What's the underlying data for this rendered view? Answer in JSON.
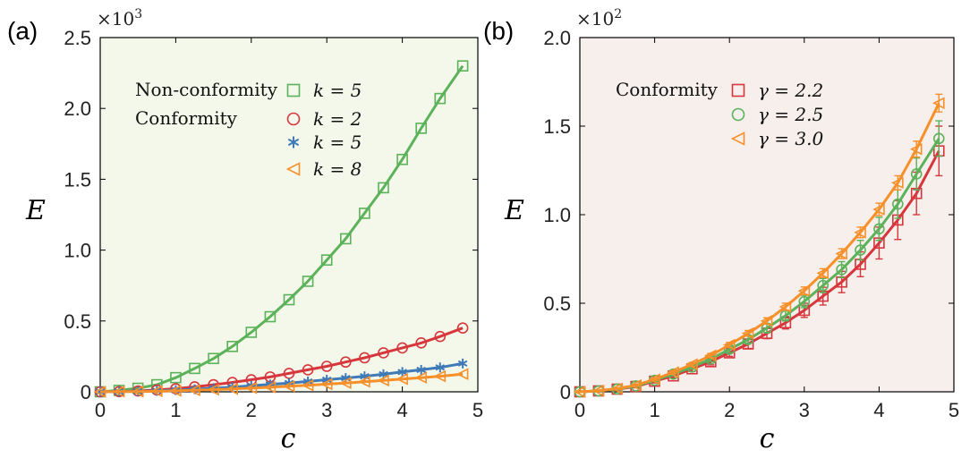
{
  "colors": {
    "green": "#5cb25a",
    "red": "#d6363c",
    "blue": "#3f7ab8",
    "orange": "#f7902a",
    "panel_a_bg": "#f3f8ea",
    "panel_b_bg": "#f6efec"
  },
  "chart_data": [
    {
      "type": "line",
      "panel_label": "(a)",
      "xlabel": "c",
      "ylabel": "E",
      "y_multiplier": "×10",
      "y_multiplier_exp": "3",
      "xlim": [
        0,
        5
      ],
      "ylim": [
        0,
        2.5
      ],
      "xticks": [
        "0",
        "1",
        "2",
        "3",
        "4",
        "5"
      ],
      "yticks": [
        "0",
        "0.5",
        "1.0",
        "1.5",
        "2.0",
        "2.5"
      ],
      "legend_heads": [
        "Non-conformity",
        "Conformity"
      ],
      "x": [
        0,
        0.25,
        0.5,
        0.75,
        1.0,
        1.25,
        1.5,
        1.75,
        2.0,
        2.25,
        2.5,
        2.75,
        3.0,
        3.25,
        3.5,
        3.75,
        4.0,
        4.25,
        4.5,
        4.8
      ],
      "series": [
        {
          "name": "k = 5",
          "group": "Non-conformity",
          "marker": "square",
          "color": "green",
          "values": [
            0,
            0.01,
            0.025,
            0.05,
            0.1,
            0.165,
            0.235,
            0.32,
            0.42,
            0.53,
            0.65,
            0.78,
            0.93,
            1.08,
            1.26,
            1.44,
            1.64,
            1.86,
            2.07,
            2.3
          ]
        },
        {
          "name": "k = 2",
          "group": "Conformity",
          "marker": "circle",
          "color": "red",
          "values": [
            0,
            0.001,
            0.006,
            0.013,
            0.022,
            0.035,
            0.05,
            0.066,
            0.085,
            0.105,
            0.13,
            0.155,
            0.18,
            0.21,
            0.24,
            0.275,
            0.31,
            0.345,
            0.39,
            0.45
          ]
        },
        {
          "name": "k = 5",
          "group": "Conformity",
          "marker": "asterisk",
          "color": "blue",
          "values": [
            0,
            0.001,
            0.003,
            0.007,
            0.012,
            0.018,
            0.025,
            0.033,
            0.042,
            0.052,
            0.062,
            0.073,
            0.085,
            0.097,
            0.11,
            0.124,
            0.14,
            0.155,
            0.172,
            0.2
          ]
        },
        {
          "name": "k = 8",
          "group": "Conformity",
          "marker": "triangle-left",
          "color": "orange",
          "values": [
            0,
            0.001,
            0.002,
            0.004,
            0.007,
            0.011,
            0.015,
            0.02,
            0.026,
            0.032,
            0.039,
            0.046,
            0.054,
            0.062,
            0.071,
            0.08,
            0.09,
            0.1,
            0.11,
            0.125
          ]
        }
      ]
    },
    {
      "type": "line",
      "panel_label": "(b)",
      "xlabel": "c",
      "ylabel": "E",
      "y_multiplier": "×10",
      "y_multiplier_exp": "2",
      "xlim": [
        0,
        5
      ],
      "ylim": [
        0,
        2.0
      ],
      "xticks": [
        "0",
        "1",
        "2",
        "3",
        "4",
        "5"
      ],
      "yticks": [
        "0",
        "0.5",
        "1.0",
        "1.5",
        "2.0"
      ],
      "legend_heads": [
        "Conformity"
      ],
      "x": [
        0,
        0.25,
        0.5,
        0.75,
        1.0,
        1.25,
        1.5,
        1.75,
        2.0,
        2.25,
        2.5,
        2.75,
        3.0,
        3.25,
        3.5,
        3.75,
        4.0,
        4.25,
        4.5,
        4.8
      ],
      "series": [
        {
          "name": "γ = 2.2",
          "marker": "square",
          "color": "red",
          "values": [
            0,
            0.005,
            0.015,
            0.03,
            0.06,
            0.09,
            0.13,
            0.17,
            0.22,
            0.27,
            0.33,
            0.39,
            0.46,
            0.54,
            0.62,
            0.72,
            0.84,
            0.97,
            1.12,
            1.36
          ],
          "errors": [
            0.004,
            0.005,
            0.006,
            0.007,
            0.01,
            0.012,
            0.015,
            0.018,
            0.02,
            0.025,
            0.03,
            0.035,
            0.04,
            0.05,
            0.06,
            0.07,
            0.09,
            0.11,
            0.12,
            0.14
          ]
        },
        {
          "name": "γ = 2.5",
          "marker": "circle",
          "color": "green",
          "values": [
            0,
            0.005,
            0.016,
            0.033,
            0.065,
            0.1,
            0.14,
            0.185,
            0.24,
            0.295,
            0.36,
            0.43,
            0.51,
            0.6,
            0.69,
            0.8,
            0.92,
            1.06,
            1.23,
            1.43
          ],
          "errors": [
            0.003,
            0.004,
            0.005,
            0.006,
            0.008,
            0.01,
            0.012,
            0.015,
            0.018,
            0.02,
            0.025,
            0.03,
            0.035,
            0.04,
            0.045,
            0.055,
            0.065,
            0.08,
            0.09,
            0.1
          ]
        },
        {
          "name": "γ = 3.0",
          "marker": "triangle-left",
          "color": "orange",
          "values": [
            0,
            0.006,
            0.018,
            0.037,
            0.07,
            0.11,
            0.155,
            0.205,
            0.265,
            0.33,
            0.4,
            0.48,
            0.57,
            0.67,
            0.78,
            0.9,
            1.03,
            1.18,
            1.37,
            1.63
          ],
          "errors": [
            0.003,
            0.003,
            0.004,
            0.005,
            0.006,
            0.008,
            0.01,
            0.012,
            0.014,
            0.016,
            0.018,
            0.02,
            0.022,
            0.025,
            0.028,
            0.03,
            0.035,
            0.04,
            0.045,
            0.05
          ]
        }
      ]
    }
  ]
}
